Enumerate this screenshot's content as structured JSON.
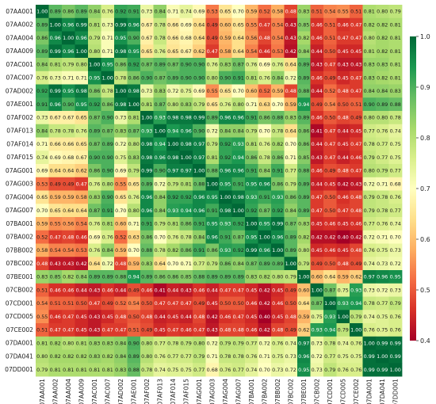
{
  "chart_data": {
    "type": "heatmap",
    "title": "",
    "xlabel": "",
    "ylabel": "",
    "labels": [
      "07AA001",
      "07AA002",
      "07AA004",
      "07AA009",
      "07AC001",
      "07AC007",
      "07AD002",
      "07AE001",
      "07AF002",
      "07AF013",
      "07AF014",
      "07AF015",
      "07AG001",
      "07AG003",
      "07AG004",
      "07AG007",
      "07BA001",
      "07BA002",
      "07BB002",
      "07BC002",
      "07BE001",
      "07CB002",
      "07CD001",
      "07CD005",
      "07CE002",
      "07DA001",
      "07DA041",
      "07DD001"
    ],
    "values": [
      [
        1.0,
        0.89,
        0.86,
        0.89,
        0.84,
        0.76,
        0.92,
        0.91,
        0.73,
        0.84,
        0.71,
        0.74,
        0.69,
        0.53,
        0.65,
        0.7,
        0.59,
        0.52,
        0.58,
        0.48,
        0.83,
        0.51,
        0.54,
        0.55,
        0.51,
        0.81,
        0.8,
        0.79
      ],
      [
        0.89,
        1.0,
        0.96,
        0.99,
        0.81,
        0.73,
        0.99,
        0.96,
        0.67,
        0.78,
        0.66,
        0.69,
        0.64,
        0.49,
        0.6,
        0.65,
        0.55,
        0.47,
        0.54,
        0.43,
        0.85,
        0.46,
        0.51,
        0.46,
        0.47,
        0.82,
        0.82,
        0.81
      ],
      [
        0.86,
        0.96,
        1.0,
        0.96,
        0.79,
        0.71,
        0.95,
        0.9,
        0.67,
        0.78,
        0.66,
        0.68,
        0.64,
        0.49,
        0.59,
        0.64,
        0.56,
        0.48,
        0.54,
        0.43,
        0.82,
        0.46,
        0.51,
        0.47,
        0.47,
        0.8,
        0.82,
        0.81
      ],
      [
        0.89,
        0.99,
        0.96,
        1.0,
        0.8,
        0.71,
        0.98,
        0.95,
        0.65,
        0.76,
        0.65,
        0.67,
        0.62,
        0.47,
        0.58,
        0.64,
        0.54,
        0.46,
        0.53,
        0.42,
        0.84,
        0.44,
        0.5,
        0.45,
        0.45,
        0.81,
        0.82,
        0.81
      ],
      [
        0.84,
        0.81,
        0.79,
        0.8,
        1.0,
        0.95,
        0.86,
        0.92,
        0.87,
        0.89,
        0.87,
        0.9,
        0.9,
        0.76,
        0.83,
        0.87,
        0.76,
        0.69,
        0.76,
        0.64,
        0.89,
        0.43,
        0.47,
        0.43,
        0.43,
        0.83,
        0.83,
        0.81
      ],
      [
        0.76,
        0.73,
        0.71,
        0.71,
        0.95,
        1.0,
        0.78,
        0.86,
        0.9,
        0.87,
        0.89,
        0.9,
        0.9,
        0.8,
        0.9,
        0.91,
        0.81,
        0.76,
        0.84,
        0.72,
        0.89,
        0.46,
        0.49,
        0.45,
        0.47,
        0.83,
        0.82,
        0.81
      ],
      [
        0.92,
        0.99,
        0.95,
        0.98,
        0.86,
        0.78,
        1.0,
        0.98,
        0.73,
        0.83,
        0.72,
        0.75,
        0.69,
        0.55,
        0.65,
        0.7,
        0.6,
        0.52,
        0.59,
        0.48,
        0.88,
        0.44,
        0.52,
        0.48,
        0.47,
        0.84,
        0.84,
        0.83
      ],
      [
        0.91,
        0.96,
        0.9,
        0.95,
        0.92,
        0.86,
        0.98,
        1.0,
        0.81,
        0.87,
        0.8,
        0.83,
        0.79,
        0.65,
        0.76,
        0.8,
        0.71,
        0.63,
        0.7,
        0.59,
        0.94,
        0.49,
        0.54,
        0.5,
        0.51,
        0.9,
        0.89,
        0.88
      ],
      [
        0.73,
        0.67,
        0.67,
        0.65,
        0.87,
        0.9,
        0.73,
        0.81,
        1.0,
        0.93,
        0.98,
        0.98,
        0.99,
        0.89,
        0.96,
        0.96,
        0.91,
        0.86,
        0.88,
        0.83,
        0.89,
        0.46,
        0.5,
        0.48,
        0.49,
        0.8,
        0.8,
        0.78
      ],
      [
        0.84,
        0.78,
        0.78,
        0.76,
        0.89,
        0.87,
        0.83,
        0.87,
        0.93,
        1.0,
        0.94,
        0.96,
        0.9,
        0.72,
        0.84,
        0.84,
        0.79,
        0.7,
        0.78,
        0.64,
        0.86,
        0.41,
        0.47,
        0.44,
        0.45,
        0.77,
        0.76,
        0.74
      ],
      [
        0.71,
        0.66,
        0.66,
        0.65,
        0.87,
        0.89,
        0.72,
        0.8,
        0.98,
        0.94,
        1.0,
        0.98,
        0.97,
        0.79,
        0.92,
        0.93,
        0.81,
        0.76,
        0.82,
        0.7,
        0.86,
        0.44,
        0.47,
        0.45,
        0.47,
        0.78,
        0.77,
        0.75
      ],
      [
        0.74,
        0.69,
        0.68,
        0.67,
        0.9,
        0.9,
        0.75,
        0.83,
        0.98,
        0.96,
        0.98,
        1.0,
        0.97,
        0.81,
        0.92,
        0.94,
        0.86,
        0.78,
        0.86,
        0.71,
        0.85,
        0.43,
        0.47,
        0.44,
        0.46,
        0.79,
        0.77,
        0.75
      ],
      [
        0.69,
        0.64,
        0.64,
        0.62,
        0.86,
        0.9,
        0.69,
        0.79,
        0.99,
        0.9,
        0.97,
        0.97,
        1.0,
        0.88,
        0.96,
        0.96,
        0.91,
        0.84,
        0.91,
        0.77,
        0.88,
        0.46,
        0.49,
        0.48,
        0.47,
        0.8,
        0.79,
        0.77
      ],
      [
        0.53,
        0.49,
        0.49,
        0.47,
        0.76,
        0.8,
        0.55,
        0.65,
        0.89,
        0.72,
        0.79,
        0.81,
        0.88,
        1.0,
        0.95,
        0.91,
        0.95,
        0.96,
        0.86,
        0.79,
        0.89,
        0.44,
        0.45,
        0.42,
        0.43,
        0.72,
        0.71,
        0.68
      ],
      [
        0.65,
        0.59,
        0.59,
        0.58,
        0.83,
        0.9,
        0.65,
        0.76,
        0.96,
        0.84,
        0.92,
        0.92,
        0.96,
        0.95,
        1.0,
        0.98,
        0.93,
        0.91,
        0.93,
        0.86,
        0.89,
        0.47,
        0.5,
        0.46,
        0.48,
        0.79,
        0.78,
        0.76
      ],
      [
        0.7,
        0.65,
        0.64,
        0.64,
        0.87,
        0.91,
        0.7,
        0.8,
        0.96,
        0.84,
        0.93,
        0.94,
        0.96,
        0.91,
        0.98,
        1.0,
        0.92,
        0.87,
        0.92,
        0.84,
        0.89,
        0.47,
        0.5,
        0.47,
        0.48,
        0.79,
        0.78,
        0.77
      ],
      [
        0.59,
        0.55,
        0.56,
        0.54,
        0.76,
        0.81,
        0.6,
        0.71,
        0.91,
        0.79,
        0.81,
        0.86,
        0.91,
        0.95,
        0.93,
        0.92,
        1.0,
        0.95,
        0.99,
        0.87,
        0.83,
        0.45,
        0.46,
        0.45,
        0.46,
        0.77,
        0.76,
        0.74
      ],
      [
        0.52,
        0.47,
        0.48,
        0.46,
        0.69,
        0.76,
        0.52,
        0.63,
        0.86,
        0.7,
        0.76,
        0.78,
        0.84,
        0.96,
        0.91,
        0.87,
        0.95,
        1.0,
        0.96,
        0.89,
        0.82,
        0.42,
        0.42,
        0.4,
        0.42,
        0.72,
        0.71,
        0.7
      ],
      [
        0.58,
        0.54,
        0.54,
        0.53,
        0.76,
        0.84,
        0.59,
        0.7,
        0.88,
        0.78,
        0.82,
        0.86,
        0.91,
        0.86,
        0.93,
        0.92,
        0.99,
        0.96,
        1.0,
        0.89,
        0.8,
        0.45,
        0.46,
        0.45,
        0.48,
        0.76,
        0.75,
        0.73
      ],
      [
        0.48,
        0.43,
        0.43,
        0.42,
        0.64,
        0.72,
        0.48,
        0.59,
        0.83,
        0.64,
        0.7,
        0.71,
        0.77,
        0.79,
        0.86,
        0.84,
        0.87,
        0.89,
        0.89,
        1.0,
        0.79,
        0.49,
        0.5,
        0.48,
        0.49,
        0.74,
        0.73,
        0.72
      ],
      [
        0.83,
        0.85,
        0.82,
        0.84,
        0.89,
        0.89,
        0.88,
        0.94,
        0.89,
        0.86,
        0.86,
        0.85,
        0.88,
        0.89,
        0.89,
        0.89,
        0.83,
        0.82,
        0.8,
        0.79,
        1.0,
        0.6,
        0.64,
        0.59,
        0.62,
        0.97,
        0.96,
        0.95
      ],
      [
        0.51,
        0.46,
        0.46,
        0.44,
        0.43,
        0.46,
        0.44,
        0.49,
        0.46,
        0.41,
        0.44,
        0.43,
        0.46,
        0.44,
        0.47,
        0.47,
        0.45,
        0.42,
        0.45,
        0.49,
        0.6,
        1.0,
        0.87,
        0.75,
        0.93,
        0.73,
        0.72,
        0.73
      ],
      [
        0.54,
        0.51,
        0.51,
        0.5,
        0.47,
        0.49,
        0.52,
        0.54,
        0.5,
        0.47,
        0.47,
        0.47,
        0.49,
        0.45,
        0.5,
        0.5,
        0.46,
        0.42,
        0.46,
        0.5,
        0.64,
        0.87,
        1.0,
        0.93,
        0.94,
        0.78,
        0.77,
        0.79
      ],
      [
        0.55,
        0.46,
        0.47,
        0.45,
        0.43,
        0.45,
        0.48,
        0.5,
        0.48,
        0.44,
        0.45,
        0.44,
        0.48,
        0.42,
        0.46,
        0.47,
        0.45,
        0.4,
        0.45,
        0.48,
        0.59,
        0.75,
        0.93,
        1.0,
        0.79,
        0.74,
        0.75,
        0.76
      ],
      [
        0.51,
        0.47,
        0.47,
        0.45,
        0.43,
        0.47,
        0.47,
        0.51,
        0.49,
        0.45,
        0.47,
        0.46,
        0.47,
        0.43,
        0.48,
        0.48,
        0.46,
        0.42,
        0.48,
        0.49,
        0.62,
        0.93,
        0.94,
        0.79,
        1.0,
        0.76,
        0.75,
        0.76
      ],
      [
        0.81,
        0.82,
        0.8,
        0.81,
        0.83,
        0.83,
        0.84,
        0.9,
        0.8,
        0.77,
        0.78,
        0.79,
        0.8,
        0.72,
        0.79,
        0.79,
        0.77,
        0.72,
        0.76,
        0.74,
        0.97,
        0.73,
        0.78,
        0.74,
        0.76,
        1.0,
        0.99,
        0.99
      ],
      [
        0.8,
        0.82,
        0.82,
        0.82,
        0.83,
        0.82,
        0.84,
        0.89,
        0.8,
        0.76,
        0.77,
        0.77,
        0.79,
        0.71,
        0.78,
        0.78,
        0.76,
        0.71,
        0.75,
        0.73,
        0.96,
        0.72,
        0.77,
        0.75,
        0.75,
        0.99,
        1.0,
        0.99
      ],
      [
        0.79,
        0.81,
        0.81,
        0.81,
        0.81,
        0.81,
        0.83,
        0.88,
        0.78,
        0.74,
        0.75,
        0.75,
        0.77,
        0.68,
        0.76,
        0.77,
        0.74,
        0.7,
        0.73,
        0.72,
        0.95,
        0.73,
        0.79,
        0.76,
        0.76,
        0.99,
        0.99,
        1.0
      ]
    ],
    "colorbar": {
      "min": 0.4,
      "max": 1.0,
      "ticks": [
        0.4,
        0.5,
        0.6,
        0.7,
        0.8,
        0.9,
        1.0
      ],
      "colormap": "RdYlGn"
    },
    "value_format": "2 decimals",
    "grid": false,
    "legend": "colorbar-right"
  }
}
